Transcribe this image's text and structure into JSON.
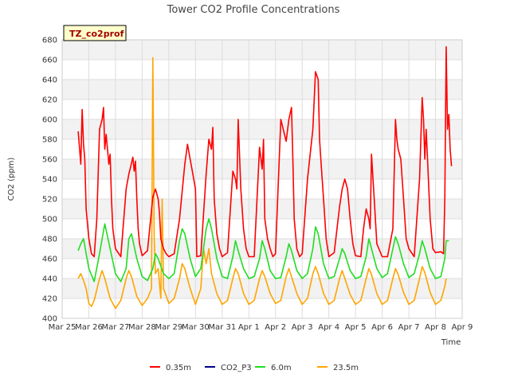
{
  "chart_data": {
    "type": "line",
    "title": "Tower CO2 Profile Concentrations",
    "site_label": "TZ_co2prof",
    "xlabel": "Time",
    "ylabel": "CO2 (ppm)",
    "ylim": [
      400,
      680
    ],
    "yticks": [
      400,
      420,
      440,
      460,
      480,
      500,
      520,
      540,
      560,
      580,
      600,
      620,
      640,
      660,
      680
    ],
    "xlim": [
      0,
      15
    ],
    "xtick_labels": [
      "Mar 25",
      "Mar 26",
      "Mar 27",
      "Mar 28",
      "Mar 29",
      "Mar 30",
      "Mar 31",
      "Apr 1",
      "Apr 2",
      "Apr 3",
      "Apr 4",
      "Apr 5",
      "Apr 6",
      "Apr 7",
      "Apr 8",
      "Apr 9"
    ],
    "legend": [
      "0.35m",
      "CO2_P3",
      "6.0m",
      "23.5m"
    ],
    "series": [
      {
        "name": "0.35m",
        "color": "#ff0000",
        "x": [
          0.6,
          0.7,
          0.75,
          0.8,
          0.85,
          0.9,
          1.0,
          1.1,
          1.2,
          1.3,
          1.4,
          1.5,
          1.55,
          1.6,
          1.65,
          1.75,
          1.8,
          1.85,
          1.9,
          2.0,
          2.2,
          2.4,
          2.5,
          2.6,
          2.65,
          2.7,
          2.75,
          2.8,
          2.85,
          2.9,
          3.0,
          3.2,
          3.4,
          3.5,
          3.6,
          3.65,
          3.7,
          3.8,
          3.9,
          4.0,
          4.2,
          4.4,
          4.6,
          4.7,
          4.8,
          4.9,
          5.0,
          5.05,
          5.2,
          5.4,
          5.5,
          5.6,
          5.65,
          5.7,
          5.8,
          5.9,
          6.0,
          6.2,
          6.4,
          6.5,
          6.55,
          6.6,
          6.7,
          6.8,
          6.9,
          7.0,
          7.2,
          7.4,
          7.5,
          7.55,
          7.6,
          7.7,
          7.8,
          7.9,
          8.0,
          8.2,
          8.4,
          8.5,
          8.6,
          8.65,
          8.7,
          8.8,
          8.9,
          9.0,
          9.2,
          9.4,
          9.5,
          9.6,
          9.65,
          9.7,
          9.8,
          9.9,
          10.0,
          10.2,
          10.4,
          10.5,
          10.6,
          10.7,
          10.8,
          10.9,
          11.0,
          11.2,
          11.3,
          11.4,
          11.5,
          11.55,
          11.6,
          11.7,
          11.8,
          12.0,
          12.2,
          12.4,
          12.5,
          12.55,
          12.6,
          12.7,
          12.8,
          12.9,
          13.0,
          13.2,
          13.4,
          13.5,
          13.55,
          13.6,
          13.65,
          13.7,
          13.8,
          13.9,
          14.0,
          14.2,
          14.3,
          14.35,
          14.4,
          14.45,
          14.5,
          14.55,
          14.6
        ],
        "values": [
          588,
          555,
          610,
          575,
          560,
          510,
          480,
          465,
          462,
          500,
          590,
          600,
          612,
          570,
          585,
          555,
          565,
          520,
          490,
          470,
          462,
          530,
          545,
          556,
          562,
          548,
          558,
          520,
          490,
          475,
          463,
          468,
          522,
          530,
          520,
          505,
          480,
          470,
          465,
          462,
          465,
          500,
          555,
          575,
          560,
          545,
          530,
          462,
          463,
          545,
          580,
          570,
          592,
          520,
          485,
          470,
          462,
          466,
          548,
          540,
          530,
          600,
          530,
          490,
          470,
          462,
          462,
          572,
          550,
          580,
          500,
          480,
          470,
          462,
          465,
          600,
          578,
          600,
          612,
          560,
          500,
          470,
          462,
          465,
          540,
          590,
          648,
          640,
          580,
          560,
          520,
          480,
          462,
          466,
          512,
          530,
          540,
          530,
          500,
          475,
          463,
          462,
          490,
          510,
          500,
          490,
          565,
          520,
          475,
          462,
          462,
          490,
          600,
          580,
          570,
          560,
          520,
          480,
          470,
          462,
          540,
          622,
          600,
          560,
          590,
          560,
          500,
          470,
          466,
          467,
          465,
          520,
          673,
          590,
          605,
          570,
          553
        ]
      },
      {
        "name": "CO2_P3",
        "color": "#00008b",
        "x": [],
        "values": []
      },
      {
        "name": "6.0m",
        "color": "#22dd22",
        "x": [
          0.6,
          0.7,
          0.8,
          1.0,
          1.2,
          1.4,
          1.5,
          1.6,
          1.8,
          2.0,
          2.2,
          2.4,
          2.5,
          2.6,
          2.8,
          3.0,
          3.2,
          3.4,
          3.5,
          3.6,
          3.8,
          4.0,
          4.2,
          4.4,
          4.5,
          4.6,
          4.8,
          5.0,
          5.2,
          5.4,
          5.5,
          5.6,
          5.8,
          6.0,
          6.2,
          6.4,
          6.5,
          6.6,
          6.8,
          7.0,
          7.2,
          7.4,
          7.5,
          7.6,
          7.8,
          8.0,
          8.2,
          8.4,
          8.5,
          8.6,
          8.8,
          9.0,
          9.2,
          9.4,
          9.5,
          9.6,
          9.8,
          10.0,
          10.2,
          10.4,
          10.5,
          10.6,
          10.8,
          11.0,
          11.2,
          11.4,
          11.5,
          11.6,
          11.8,
          12.0,
          12.2,
          12.4,
          12.5,
          12.6,
          12.8,
          13.0,
          13.2,
          13.4,
          13.5,
          13.6,
          13.8,
          14.0,
          14.2,
          14.35,
          14.4,
          14.5
        ],
        "values": [
          468,
          475,
          480,
          450,
          437,
          465,
          480,
          495,
          470,
          445,
          437,
          450,
          480,
          485,
          460,
          442,
          438,
          450,
          465,
          460,
          445,
          440,
          445,
          478,
          490,
          485,
          460,
          442,
          450,
          490,
          500,
          490,
          460,
          442,
          440,
          462,
          478,
          468,
          450,
          440,
          442,
          460,
          478,
          470,
          448,
          440,
          441,
          462,
          475,
          468,
          448,
          440,
          445,
          470,
          492,
          485,
          455,
          440,
          442,
          460,
          470,
          465,
          448,
          440,
          442,
          462,
          480,
          470,
          450,
          441,
          445,
          470,
          482,
          475,
          455,
          441,
          445,
          465,
          478,
          470,
          450,
          440,
          442,
          460,
          478,
          478
        ]
      },
      {
        "name": "23.5m",
        "color": "#ffa500",
        "x": [
          0.6,
          0.7,
          0.8,
          0.9,
          1.0,
          1.1,
          1.2,
          1.4,
          1.5,
          1.6,
          1.8,
          2.0,
          2.2,
          2.4,
          2.5,
          2.6,
          2.8,
          3.0,
          3.2,
          3.35,
          3.4,
          3.45,
          3.5,
          3.6,
          3.7,
          3.75,
          3.8,
          4.0,
          4.2,
          4.4,
          4.5,
          4.6,
          4.8,
          5.0,
          5.2,
          5.3,
          5.4,
          5.5,
          5.6,
          5.8,
          6.0,
          6.2,
          6.4,
          6.5,
          6.6,
          6.8,
          7.0,
          7.2,
          7.4,
          7.5,
          7.6,
          7.8,
          8.0,
          8.2,
          8.4,
          8.5,
          8.6,
          8.8,
          9.0,
          9.2,
          9.4,
          9.5,
          9.6,
          9.8,
          10.0,
          10.2,
          10.4,
          10.5,
          10.6,
          10.8,
          11.0,
          11.2,
          11.4,
          11.5,
          11.6,
          11.8,
          12.0,
          12.2,
          12.4,
          12.5,
          12.6,
          12.8,
          13.0,
          13.2,
          13.4,
          13.5,
          13.6,
          13.8,
          14.0,
          14.2,
          14.35,
          14.4
        ],
        "values": [
          440,
          445,
          438,
          430,
          415,
          412,
          418,
          440,
          448,
          440,
          420,
          410,
          418,
          440,
          448,
          442,
          422,
          413,
          420,
          430,
          662,
          480,
          445,
          450,
          420,
          520,
          430,
          415,
          420,
          440,
          455,
          450,
          430,
          414,
          430,
          470,
          455,
          470,
          445,
          425,
          414,
          418,
          440,
          450,
          445,
          425,
          414,
          418,
          440,
          448,
          442,
          425,
          415,
          418,
          442,
          450,
          442,
          425,
          414,
          420,
          445,
          452,
          445,
          425,
          414,
          418,
          440,
          448,
          440,
          424,
          414,
          418,
          440,
          450,
          444,
          425,
          414,
          418,
          440,
          450,
          444,
          426,
          414,
          418,
          440,
          452,
          446,
          426,
          414,
          418,
          432,
          440
        ]
      }
    ]
  }
}
